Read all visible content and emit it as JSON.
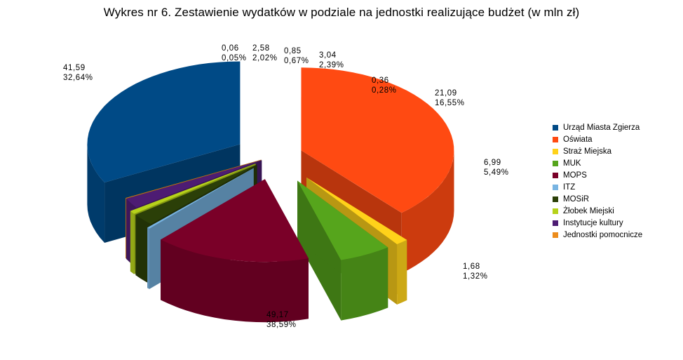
{
  "chart_data": {
    "type": "pie",
    "title": "Wykres nr 6. Zestawienie wydatków w podziale na jednostki realizujące budżet (w mln zł)",
    "categories": [
      "Urząd Miasta Zgierza",
      "Oświata",
      "Straż Miejska",
      "MUK",
      "MOPS",
      "ITZ",
      "MOSiR",
      "Żłobek Miejski",
      "Instytucje kultury",
      "Jednostki pomocnicze"
    ],
    "values": [
      41.59,
      49.17,
      1.68,
      6.99,
      21.09,
      0.36,
      3.04,
      0.85,
      2.58,
      0.06
    ],
    "percentages": [
      32.64,
      38.59,
      1.32,
      5.49,
      16.55,
      0.28,
      2.39,
      0.67,
      2.02,
      0.05
    ],
    "value_labels": [
      "41,59",
      "49,17",
      "1,68",
      "6,99",
      "21,09",
      "0,36",
      "3,04",
      "0,85",
      "2,58",
      "0,06"
    ],
    "percent_labels": [
      "32,64%",
      "38,59%",
      "1,32%",
      "5,49%",
      "16,55%",
      "0,28%",
      "2,39%",
      "0,67%",
      "2,02%",
      "0,05%"
    ],
    "colors": [
      "#004A86",
      "#FF4A12",
      "#FFD21A",
      "#56A51C",
      "#7A0028",
      "#78B4E2",
      "#2B3F08",
      "#B6D21A",
      "#4D1C73",
      "#EC8C1C"
    ],
    "style": "3d-exploded-pie",
    "legend_position": "right"
  },
  "legend": {
    "items": [
      "Urząd Miasta Zgierza",
      "Oświata",
      "Straż Miejska",
      "MUK",
      "MOPS",
      "ITZ",
      "MOSiR",
      "Żłobek Miejski",
      "Instytucje kultury",
      "Jednostki pomocnicze"
    ]
  }
}
